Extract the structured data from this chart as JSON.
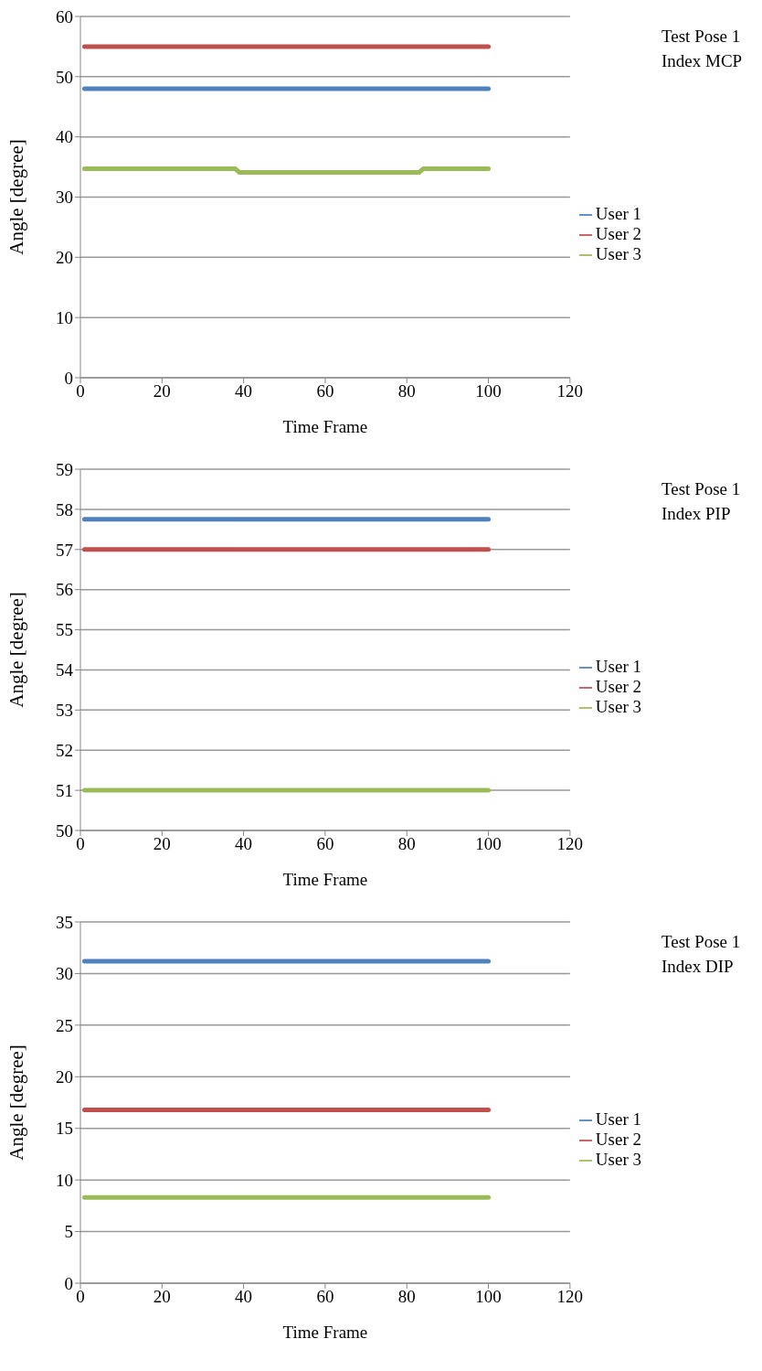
{
  "chart_data": [
    {
      "type": "line",
      "legend_title": "Test Pose 1\nIndex MCP",
      "xlabel": "Time Frame",
      "ylabel": "Angle [degree]",
      "xlim": [
        0,
        120
      ],
      "xticks": [
        0,
        20,
        40,
        60,
        80,
        100,
        120
      ],
      "ylim": [
        0,
        60
      ],
      "yticks": [
        0,
        10,
        20,
        30,
        40,
        50,
        60
      ],
      "grid": "y",
      "legend": "right",
      "marker": "none",
      "line_style": "solid",
      "series": [
        {
          "name": "User 1",
          "color": "#4f81bd",
          "x": [
            1,
            100
          ],
          "values": [
            48,
            48
          ]
        },
        {
          "name": "User 2",
          "color": "#c0504d",
          "x": [
            1,
            100
          ],
          "values": [
            55,
            55
          ]
        },
        {
          "name": "User 3",
          "color": "#9bbb59",
          "x": [
            1,
            38,
            39,
            83,
            84,
            100
          ],
          "values": [
            34.7,
            34.7,
            34.1,
            34.1,
            34.7,
            34.7
          ]
        }
      ]
    },
    {
      "type": "line",
      "legend_title": "Test Pose 1\nIndex PIP",
      "xlabel": "Time Frame",
      "ylabel": "Angle [degree]",
      "xlim": [
        0,
        120
      ],
      "xticks": [
        0,
        20,
        40,
        60,
        80,
        100,
        120
      ],
      "ylim": [
        50,
        59
      ],
      "yticks": [
        50,
        51,
        52,
        53,
        54,
        55,
        56,
        57,
        58,
        59
      ],
      "grid": "y",
      "legend": "right",
      "marker": "none",
      "line_style": "solid",
      "series": [
        {
          "name": "User 1",
          "color": "#4f81bd",
          "x": [
            1,
            100
          ],
          "values": [
            57.75,
            57.75
          ]
        },
        {
          "name": "User 2",
          "color": "#c0504d",
          "x": [
            1,
            100
          ],
          "values": [
            57,
            57
          ]
        },
        {
          "name": "User 3",
          "color": "#9bbb59",
          "x": [
            1,
            100
          ],
          "values": [
            51,
            51
          ]
        }
      ]
    },
    {
      "type": "line",
      "legend_title": "Test Pose 1\nIndex DIP",
      "xlabel": "Time Frame",
      "ylabel": "Angle [degree]",
      "xlim": [
        0,
        120
      ],
      "xticks": [
        0,
        20,
        40,
        60,
        80,
        100,
        120
      ],
      "ylim": [
        0,
        35
      ],
      "yticks": [
        0,
        5,
        10,
        15,
        20,
        25,
        30,
        35
      ],
      "grid": "y",
      "legend": "right",
      "marker": "none",
      "line_style": "solid",
      "series": [
        {
          "name": "User 1",
          "color": "#4f81bd",
          "x": [
            1,
            100
          ],
          "values": [
            31.2,
            31.2
          ]
        },
        {
          "name": "User 2",
          "color": "#c0504d",
          "x": [
            1,
            100
          ],
          "values": [
            16.8,
            16.8
          ]
        },
        {
          "name": "User 3",
          "color": "#9bbb59",
          "x": [
            1,
            100
          ],
          "values": [
            8.3,
            8.3
          ]
        }
      ]
    }
  ]
}
